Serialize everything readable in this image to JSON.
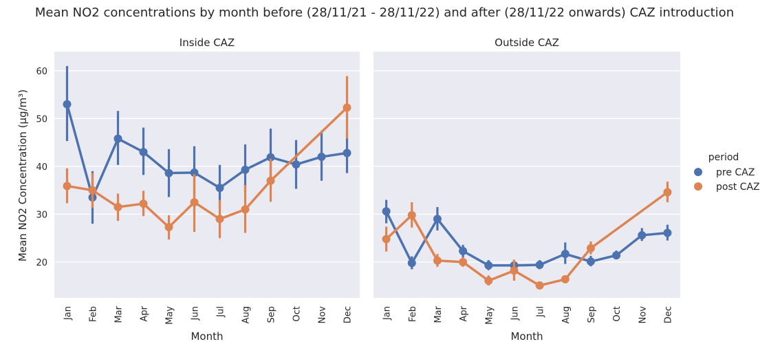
{
  "title": "Mean NO2 concentrations by month before (28/11/21 - 28/11/22) and after (28/11/22 onwards) CAZ introduction",
  "ylabel": "Mean NO2 Concentration (µg/m³)",
  "xlabel": "Month",
  "legend": {
    "title": "period",
    "placement": "right"
  },
  "colors": {
    "pre CAZ": "#4c72b0",
    "post CAZ": "#dd8452",
    "panel_bg": "#eaeaf2",
    "grid": "#ffffff"
  },
  "chart_data": {
    "type": "line",
    "subtype": "point plot with error bars",
    "months": [
      "Jan",
      "Feb",
      "Mar",
      "Apr",
      "May",
      "Jun",
      "Jul",
      "Aug",
      "Sep",
      "Oct",
      "Nov",
      "Dec"
    ],
    "ylim": [
      12.5,
      64
    ],
    "yticks": [
      20,
      30,
      40,
      50,
      60
    ],
    "grid": true,
    "legend_placement": "right",
    "panels": [
      {
        "title": "Inside CAZ",
        "series": [
          {
            "name": "pre CAZ",
            "points": [
              {
                "x": "Jan",
                "y": 53.0,
                "lo": 45.3,
                "hi": 61.0
              },
              {
                "x": "Feb",
                "y": 33.5,
                "lo": 28.0,
                "hi": 39.0
              },
              {
                "x": "Mar",
                "y": 45.8,
                "lo": 40.3,
                "hi": 51.6
              },
              {
                "x": "Apr",
                "y": 43.0,
                "lo": 38.2,
                "hi": 48.1
              },
              {
                "x": "May",
                "y": 38.6,
                "lo": 33.6,
                "hi": 43.6
              },
              {
                "x": "Jun",
                "y": 38.7,
                "lo": 33.5,
                "hi": 44.2
              },
              {
                "x": "Jul",
                "y": 35.5,
                "lo": 31.3,
                "hi": 40.3
              },
              {
                "x": "Aug",
                "y": 39.3,
                "lo": 34.5,
                "hi": 44.6
              },
              {
                "x": "Sep",
                "y": 41.9,
                "lo": 36.6,
                "hi": 47.9
              },
              {
                "x": "Oct",
                "y": 40.4,
                "lo": 35.3,
                "hi": 45.5
              },
              {
                "x": "Nov",
                "y": 42.0,
                "lo": 37.0,
                "hi": 47.0
              },
              {
                "x": "Dec",
                "y": 42.8,
                "lo": 38.6,
                "hi": 47.0
              }
            ]
          },
          {
            "name": "post CAZ",
            "points": [
              {
                "x": "Jan",
                "y": 35.9,
                "lo": 32.3,
                "hi": 39.6
              },
              {
                "x": "Feb",
                "y": 35.0,
                "lo": 31.3,
                "hi": 38.6
              },
              {
                "x": "Mar",
                "y": 31.5,
                "lo": 28.6,
                "hi": 34.3
              },
              {
                "x": "Apr",
                "y": 32.2,
                "lo": 29.6,
                "hi": 34.9
              },
              {
                "x": "May",
                "y": 27.3,
                "lo": 24.7,
                "hi": 29.8
              },
              {
                "x": "Jun",
                "y": 32.5,
                "lo": 26.3,
                "hi": 38.4
              },
              {
                "x": "Jul",
                "y": 29.0,
                "lo": 25.0,
                "hi": 33.0
              },
              {
                "x": "Aug",
                "y": 31.0,
                "lo": 26.1,
                "hi": 36.1
              },
              {
                "x": "Sep",
                "y": 37.0,
                "lo": 32.6,
                "hi": 41.6
              },
              {
                "x": "Dec",
                "y": 52.3,
                "lo": 45.8,
                "hi": 58.9
              }
            ]
          }
        ]
      },
      {
        "title": "Outside CAZ",
        "series": [
          {
            "name": "pre CAZ",
            "points": [
              {
                "x": "Jan",
                "y": 30.6,
                "lo": 28.1,
                "hi": 33.0
              },
              {
                "x": "Feb",
                "y": 19.8,
                "lo": 18.5,
                "hi": 21.2
              },
              {
                "x": "Mar",
                "y": 29.0,
                "lo": 26.6,
                "hi": 31.5
              },
              {
                "x": "Apr",
                "y": 22.3,
                "lo": 21.0,
                "hi": 23.6
              },
              {
                "x": "May",
                "y": 19.3,
                "lo": 18.3,
                "hi": 20.4
              },
              {
                "x": "Jun",
                "y": 19.3,
                "lo": 18.3,
                "hi": 20.4
              },
              {
                "x": "Jul",
                "y": 19.4,
                "lo": 18.5,
                "hi": 20.4
              },
              {
                "x": "Aug",
                "y": 21.7,
                "lo": 19.6,
                "hi": 24.1
              },
              {
                "x": "Sep",
                "y": 20.1,
                "lo": 19.1,
                "hi": 21.3
              },
              {
                "x": "Oct",
                "y": 21.4,
                "lo": 20.6,
                "hi": 22.4
              },
              {
                "x": "Nov",
                "y": 25.6,
                "lo": 24.4,
                "hi": 27.1
              },
              {
                "x": "Dec",
                "y": 26.1,
                "lo": 24.5,
                "hi": 27.8
              }
            ]
          },
          {
            "name": "post CAZ",
            "points": [
              {
                "x": "Jan",
                "y": 24.8,
                "lo": 22.2,
                "hi": 27.4
              },
              {
                "x": "Feb",
                "y": 29.8,
                "lo": 27.2,
                "hi": 32.5
              },
              {
                "x": "Mar",
                "y": 20.3,
                "lo": 19.0,
                "hi": 21.7
              },
              {
                "x": "Apr",
                "y": 20.0,
                "lo": 19.0,
                "hi": 21.0
              },
              {
                "x": "May",
                "y": 16.1,
                "lo": 15.1,
                "hi": 17.2
              },
              {
                "x": "Jun",
                "y": 18.2,
                "lo": 16.1,
                "hi": 20.5
              },
              {
                "x": "Jul",
                "y": 15.1,
                "lo": 14.5,
                "hi": 15.8
              },
              {
                "x": "Aug",
                "y": 16.4,
                "lo": 15.7,
                "hi": 17.0
              },
              {
                "x": "Sep",
                "y": 22.9,
                "lo": 21.6,
                "hi": 24.3
              },
              {
                "x": "Dec",
                "y": 34.6,
                "lo": 32.5,
                "hi": 36.8
              }
            ]
          }
        ]
      }
    ]
  }
}
